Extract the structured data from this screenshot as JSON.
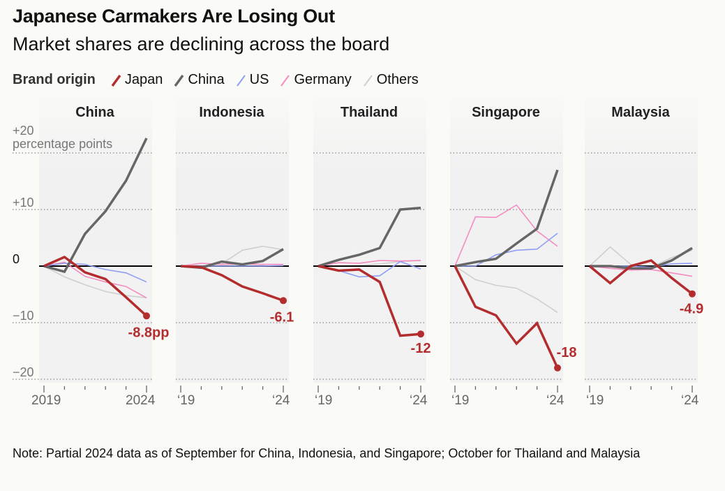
{
  "title": "Japanese Carmakers Are Losing Out",
  "subtitle": "Market shares are declining across the board",
  "legend": {
    "title": "Brand origin",
    "items": [
      {
        "label": "Japan",
        "color": "#b32d2e"
      },
      {
        "label": "China",
        "color": "#666666"
      },
      {
        "label": "US",
        "color": "#8f9ff5"
      },
      {
        "label": "Germany",
        "color": "#f48cc0"
      },
      {
        "label": "Others",
        "color": "#cfcfcf"
      }
    ]
  },
  "note": "Note: Partial 2024 data as of September for China, Indonesia, and Singapore; October for Thailand and Malaysia",
  "chart_data": {
    "type": "line",
    "x": [
      2019,
      2020,
      2021,
      2022,
      2023,
      2024
    ],
    "ylim": [
      -20,
      20
    ],
    "yticks": [
      "+20",
      "+10",
      "0",
      "−10",
      "−20"
    ],
    "yunit": "percentage points",
    "grid": true,
    "legend_placement": "top",
    "panels": [
      {
        "title": "China",
        "xticklabels": [
          "2019",
          "2024"
        ],
        "end_label": "-8.8pp",
        "series": {
          "Japan": [
            0,
            1.6,
            -1.1,
            -2.3,
            -5.5,
            -8.8
          ],
          "China": [
            0,
            -1,
            5.7,
            9.7,
            15.1,
            22.6
          ],
          "US": [
            0,
            0.5,
            0.3,
            -0.6,
            -1.2,
            -2.8
          ],
          "Germany": [
            0,
            0.7,
            -1.8,
            -2.8,
            -3.6,
            -5.6
          ],
          "Others": [
            0,
            -1.9,
            -3.3,
            -4.5,
            -5.2,
            -5.6
          ]
        }
      },
      {
        "title": "Indonesia",
        "xticklabels": [
          "‘19",
          "‘24"
        ],
        "end_label": "-6.1",
        "series": {
          "Japan": [
            0,
            -0.2,
            -1.6,
            -3.6,
            -4.8,
            -6.1
          ],
          "China": [
            0,
            -0.3,
            0.8,
            0.3,
            0.9,
            3
          ],
          "US": [
            0,
            0,
            0,
            0,
            0,
            0.1
          ],
          "Germany": [
            0,
            0.5,
            0.3,
            0.4,
            0.3,
            0.3
          ],
          "Others": [
            0,
            0.1,
            0.4,
            2.8,
            3.5,
            2.9
          ]
        }
      },
      {
        "title": "Thailand",
        "xticklabels": [
          "‘19",
          "‘24"
        ],
        "end_label": "-12",
        "series": {
          "Japan": [
            0,
            -0.8,
            -0.6,
            -2.8,
            -12.3,
            -12
          ],
          "China": [
            0,
            1.1,
            2,
            3.2,
            10,
            10.3
          ],
          "US": [
            0,
            -0.8,
            -1.9,
            -1.7,
            0.8,
            -0.5
          ],
          "Germany": [
            0,
            0.6,
            0.5,
            1,
            0.9,
            1
          ],
          "Others": [
            0,
            0,
            0.1,
            0.4,
            0.8,
            1
          ]
        }
      },
      {
        "title": "Singapore",
        "xticklabels": [
          "‘19",
          "‘24"
        ],
        "end_label": "-18",
        "series": {
          "Japan": [
            0,
            -7.2,
            -8.7,
            -13.7,
            -10.1,
            -18
          ],
          "China": [
            0,
            0.7,
            1.3,
            4,
            6.6,
            17
          ],
          "US": [
            0,
            0,
            2,
            2.8,
            3,
            5.8
          ],
          "Germany": [
            0,
            8.7,
            8.6,
            10.8,
            6.2,
            3.5
          ],
          "Others": [
            0,
            -2.4,
            -3.4,
            -3.9,
            -5.8,
            -8.2
          ]
        }
      },
      {
        "title": "Malaysia",
        "xticklabels": [
          "‘19",
          "‘24"
        ],
        "end_label": "-4.9",
        "series": {
          "Japan": [
            0,
            -3,
            0,
            1,
            -2.1,
            -4.9
          ],
          "China": [
            0,
            0,
            -0.4,
            -0.4,
            1,
            3.2
          ],
          "US": [
            0,
            0,
            0,
            -0.2,
            0.4,
            0.5
          ],
          "Germany": [
            0,
            -0.4,
            -0.7,
            -0.6,
            -1.2,
            -1.8
          ],
          "Others": [
            0,
            3.4,
            0.3,
            -0.2,
            1.5,
            2.8
          ]
        }
      }
    ]
  }
}
